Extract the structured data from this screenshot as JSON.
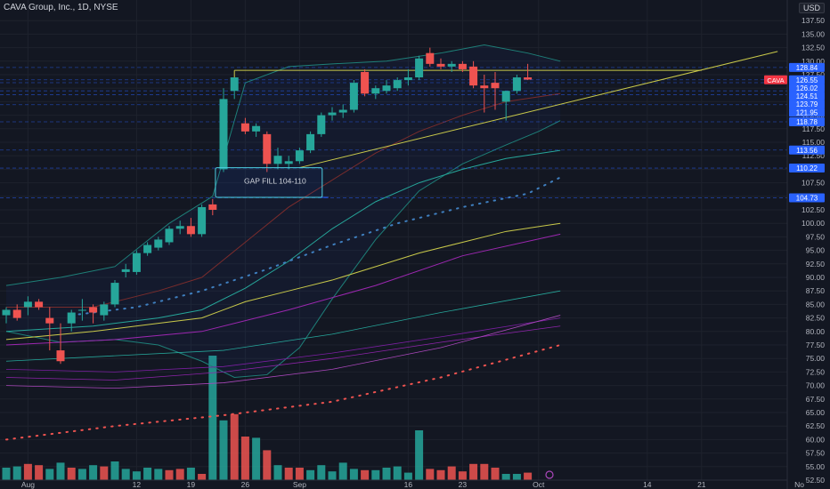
{
  "header": {
    "symbol_line": "CAVA Group, Inc., 1D, NYSE",
    "currency": "USD"
  },
  "chart_data": {
    "type": "candlestick",
    "title": "CAVA Group, Inc., 1D, NYSE",
    "ylim": [
      52.5,
      140
    ],
    "y_ticks": [
      "137.50",
      "135.00",
      "132.50",
      "130.00",
      "127.50",
      "125.00",
      "122.50",
      "120.00",
      "117.50",
      "115.00",
      "112.50",
      "110.00",
      "107.50",
      "105.00",
      "102.50",
      "100.00",
      "97.50",
      "95.00",
      "92.50",
      "90.00",
      "87.50",
      "85.00",
      "82.50",
      "80.00",
      "77.50",
      "75.00",
      "72.50",
      "70.00",
      "67.50",
      "65.00",
      "62.50",
      "60.00",
      "57.50",
      "55.00",
      "52.50"
    ],
    "x_ticks": [
      {
        "label": "Aug",
        "i": 2
      },
      {
        "label": "12",
        "i": 12
      },
      {
        "label": "19",
        "i": 17
      },
      {
        "label": "26",
        "i": 22
      },
      {
        "label": "Sep",
        "i": 27
      },
      {
        "label": "16",
        "i": 37
      },
      {
        "label": "23",
        "i": 42
      },
      {
        "label": "Oct",
        "i": 49
      },
      {
        "label": "14",
        "i": 59
      },
      {
        "label": "21",
        "i": 64
      },
      {
        "label": "No",
        "i": 73
      }
    ],
    "candles": [
      {
        "o": 83.0,
        "h": 84.5,
        "l": 81.5,
        "c": 84.0
      },
      {
        "o": 84.0,
        "h": 85.0,
        "l": 82.0,
        "c": 82.5
      },
      {
        "o": 84.5,
        "h": 86.5,
        "l": 83.0,
        "c": 85.5
      },
      {
        "o": 85.5,
        "h": 86.0,
        "l": 84.0,
        "c": 84.5
      },
      {
        "o": 82.5,
        "h": 84.5,
        "l": 76.5,
        "c": 81.5
      },
      {
        "o": 76.5,
        "h": 81.5,
        "l": 74.0,
        "c": 74.5
      },
      {
        "o": 81.5,
        "h": 84.0,
        "l": 80.0,
        "c": 83.5
      },
      {
        "o": 84.0,
        "h": 86.0,
        "l": 82.0,
        "c": 84.0
      },
      {
        "o": 84.5,
        "h": 85.0,
        "l": 81.5,
        "c": 83.5
      },
      {
        "o": 83.0,
        "h": 85.5,
        "l": 82.0,
        "c": 85.0
      },
      {
        "o": 85.0,
        "h": 89.5,
        "l": 84.5,
        "c": 89.0
      },
      {
        "o": 91.0,
        "h": 92.5,
        "l": 90.0,
        "c": 91.5
      },
      {
        "o": 91.0,
        "h": 95.0,
        "l": 90.5,
        "c": 94.5
      },
      {
        "o": 94.5,
        "h": 96.5,
        "l": 94.0,
        "c": 96.0
      },
      {
        "o": 95.5,
        "h": 97.5,
        "l": 95.0,
        "c": 97.0
      },
      {
        "o": 96.5,
        "h": 99.5,
        "l": 96.0,
        "c": 99.0
      },
      {
        "o": 99.0,
        "h": 100.5,
        "l": 98.0,
        "c": 99.5
      },
      {
        "o": 99.5,
        "h": 101.0,
        "l": 97.5,
        "c": 98.0
      },
      {
        "o": 98.0,
        "h": 103.5,
        "l": 97.5,
        "c": 103.0
      },
      {
        "o": 103.5,
        "h": 104.5,
        "l": 101.5,
        "c": 102.5
      },
      {
        "o": 110.0,
        "h": 125.0,
        "l": 109.5,
        "c": 123.0
      },
      {
        "o": 124.5,
        "h": 127.0,
        "l": 123.0,
        "c": 127.0
      },
      {
        "o": 118.5,
        "h": 119.5,
        "l": 116.5,
        "c": 117.0
      },
      {
        "o": 117.0,
        "h": 118.5,
        "l": 116.0,
        "c": 118.0
      },
      {
        "o": 116.5,
        "h": 117.0,
        "l": 109.5,
        "c": 111.0
      },
      {
        "o": 111.0,
        "h": 114.0,
        "l": 110.0,
        "c": 112.5
      },
      {
        "o": 111.0,
        "h": 112.5,
        "l": 110.0,
        "c": 111.5
      },
      {
        "o": 111.5,
        "h": 114.0,
        "l": 111.0,
        "c": 113.5
      },
      {
        "o": 113.5,
        "h": 117.0,
        "l": 113.0,
        "c": 116.5
      },
      {
        "o": 116.5,
        "h": 120.5,
        "l": 116.0,
        "c": 120.0
      },
      {
        "o": 120.0,
        "h": 121.5,
        "l": 119.0,
        "c": 120.5
      },
      {
        "o": 120.5,
        "h": 122.0,
        "l": 119.5,
        "c": 121.0
      },
      {
        "o": 121.0,
        "h": 126.5,
        "l": 120.5,
        "c": 126.0
      },
      {
        "o": 128.0,
        "h": 128.5,
        "l": 123.5,
        "c": 124.0
      },
      {
        "o": 124.0,
        "h": 125.5,
        "l": 123.0,
        "c": 125.0
      },
      {
        "o": 124.5,
        "h": 126.5,
        "l": 124.0,
        "c": 125.5
      },
      {
        "o": 125.0,
        "h": 127.0,
        "l": 124.5,
        "c": 126.5
      },
      {
        "o": 126.5,
        "h": 128.5,
        "l": 125.5,
        "c": 127.0
      },
      {
        "o": 127.0,
        "h": 131.0,
        "l": 126.5,
        "c": 130.5
      },
      {
        "o": 131.5,
        "h": 132.5,
        "l": 129.0,
        "c": 129.5
      },
      {
        "o": 129.5,
        "h": 130.5,
        "l": 128.5,
        "c": 129.0
      },
      {
        "o": 129.0,
        "h": 130.0,
        "l": 128.0,
        "c": 129.5
      },
      {
        "o": 129.5,
        "h": 130.0,
        "l": 128.0,
        "c": 128.5
      },
      {
        "o": 129.0,
        "h": 130.0,
        "l": 125.0,
        "c": 125.5
      },
      {
        "o": 125.5,
        "h": 127.5,
        "l": 120.5,
        "c": 125.0
      },
      {
        "o": 126.0,
        "h": 128.0,
        "l": 121.0,
        "c": 125.0
      },
      {
        "o": 122.5,
        "h": 124.5,
        "l": 119.0,
        "c": 124.5
      },
      {
        "o": 124.5,
        "h": 127.5,
        "l": 124.0,
        "c": 127.0
      },
      {
        "o": 127.0,
        "h": 129.5,
        "l": 126.5,
        "c": 126.6
      }
    ],
    "volume_relative": [
      0.1,
      0.11,
      0.13,
      0.12,
      0.09,
      0.14,
      0.1,
      0.09,
      0.12,
      0.11,
      0.15,
      0.09,
      0.07,
      0.1,
      0.09,
      0.08,
      0.09,
      0.1,
      0.05,
      1.0,
      0.48,
      0.53,
      0.35,
      0.34,
      0.24,
      0.12,
      0.1,
      0.1,
      0.08,
      0.12,
      0.07,
      0.14,
      0.09,
      0.08,
      0.08,
      0.1,
      0.11,
      0.06,
      0.4,
      0.09,
      0.08,
      0.11,
      0.07,
      0.13,
      0.13,
      0.1,
      0.05,
      0.05,
      0.06
    ],
    "volume_dir": [
      "up",
      "up",
      "down",
      "down",
      "up",
      "up",
      "down",
      "up",
      "up",
      "down",
      "up",
      "up",
      "up",
      "up",
      "up",
      "down",
      "down",
      "up",
      "down",
      "up",
      "up",
      "down",
      "down",
      "up",
      "down",
      "up",
      "down",
      "down",
      "up",
      "up",
      "up",
      "up",
      "up",
      "down",
      "up",
      "up",
      "up",
      "up",
      "up",
      "down",
      "down",
      "down",
      "down",
      "down",
      "down",
      "down",
      "up",
      "up",
      "down"
    ],
    "overlays": {
      "bb_upper": [
        [
          0,
          88.5
        ],
        [
          5,
          90.0
        ],
        [
          10,
          92.0
        ],
        [
          15,
          100.0
        ],
        [
          19,
          105.0
        ],
        [
          22,
          126.0
        ],
        [
          26,
          129.0
        ],
        [
          30,
          129.5
        ],
        [
          35,
          130.0
        ],
        [
          40,
          131.5
        ],
        [
          44,
          133.0
        ],
        [
          48,
          131.5
        ],
        [
          51,
          130.0
        ]
      ],
      "bb_lower": [
        [
          0,
          80.0
        ],
        [
          5,
          78.0
        ],
        [
          10,
          78.5
        ],
        [
          14,
          77.5
        ],
        [
          18,
          74.5
        ],
        [
          21,
          71.5
        ],
        [
          24,
          72.0
        ],
        [
          27,
          77.0
        ],
        [
          30,
          86.0
        ],
        [
          34,
          97.0
        ],
        [
          38,
          106.0
        ],
        [
          42,
          111.0
        ],
        [
          46,
          114.5
        ],
        [
          49,
          117.0
        ],
        [
          51,
          119.0
        ]
      ],
      "bb_basis": [
        [
          0,
          84.5
        ],
        [
          8,
          84.5
        ],
        [
          14,
          87.5
        ],
        [
          18,
          90.0
        ],
        [
          22,
          96.5
        ],
        [
          26,
          103.0
        ],
        [
          30,
          108.0
        ],
        [
          34,
          113.0
        ],
        [
          38,
          117.0
        ],
        [
          42,
          120.0
        ],
        [
          46,
          122.5
        ],
        [
          51,
          124.0
        ]
      ],
      "ema_teal": [
        [
          0,
          80.0
        ],
        [
          8,
          81.0
        ],
        [
          14,
          82.5
        ],
        [
          18,
          84.0
        ],
        [
          22,
          88.0
        ],
        [
          26,
          93.0
        ],
        [
          30,
          99.0
        ],
        [
          34,
          104.0
        ],
        [
          38,
          107.5
        ],
        [
          42,
          110.0
        ],
        [
          46,
          112.0
        ],
        [
          51,
          113.5
        ]
      ],
      "sma_yellow": [
        [
          0,
          78.5
        ],
        [
          8,
          80.0
        ],
        [
          14,
          81.5
        ],
        [
          18,
          82.5
        ],
        [
          22,
          85.5
        ],
        [
          26,
          87.5
        ],
        [
          30,
          89.5
        ],
        [
          34,
          92.0
        ],
        [
          38,
          94.5
        ],
        [
          42,
          96.5
        ],
        [
          46,
          98.5
        ],
        [
          51,
          100.0
        ]
      ],
      "sma_purple": [
        [
          0,
          77.5
        ],
        [
          10,
          78.5
        ],
        [
          18,
          80.0
        ],
        [
          26,
          84.0
        ],
        [
          34,
          88.5
        ],
        [
          42,
          94.0
        ],
        [
          51,
          98.0
        ]
      ],
      "sma_teal2": [
        [
          0,
          74.5
        ],
        [
          10,
          75.5
        ],
        [
          20,
          76.5
        ],
        [
          30,
          79.5
        ],
        [
          40,
          83.5
        ],
        [
          51,
          87.5
        ]
      ],
      "sma_purple2": [
        [
          0,
          73.0
        ],
        [
          10,
          72.5
        ],
        [
          20,
          73.5
        ],
        [
          30,
          76.0
        ],
        [
          40,
          79.0
        ],
        [
          51,
          82.5
        ]
      ],
      "sma_purple3": [
        [
          0,
          71.5
        ],
        [
          10,
          71.0
        ],
        [
          20,
          72.5
        ],
        [
          30,
          75.0
        ],
        [
          40,
          78.0
        ],
        [
          51,
          81.0
        ]
      ],
      "sma_purple4": [
        [
          0,
          70.0
        ],
        [
          10,
          69.5
        ],
        [
          20,
          70.5
        ],
        [
          30,
          73.0
        ],
        [
          40,
          77.0
        ],
        [
          51,
          83.0
        ]
      ],
      "dotted_blue": [
        [
          6,
          83.0
        ],
        [
          12,
          84.5
        ],
        [
          18,
          87.5
        ],
        [
          24,
          91.5
        ],
        [
          30,
          96.0
        ],
        [
          36,
          100.0
        ],
        [
          42,
          103.0
        ],
        [
          48,
          105.5
        ],
        [
          51,
          108.5
        ]
      ],
      "dotted_red": [
        [
          0,
          60.0
        ],
        [
          10,
          62.5
        ],
        [
          20,
          64.5
        ],
        [
          30,
          67.0
        ],
        [
          40,
          71.5
        ],
        [
          51,
          77.5
        ]
      ]
    },
    "trendlines": [
      {
        "from": [
          21,
          128.3
        ],
        "to": [
          64,
          128.3
        ]
      },
      {
        "from": [
          27,
          110.3
        ],
        "to": [
          71,
          131.8
        ]
      }
    ],
    "h_levels": [
      128.84,
      126.55,
      126.02,
      124.51,
      123.79,
      121.95,
      118.78,
      113.56,
      110.22,
      104.73
    ],
    "price_badges": [
      {
        "value": "126.55",
        "color": "#2962ff"
      },
      {
        "value": "126.02",
        "color": "#2962ff"
      },
      {
        "value": "124.51",
        "color": "#2962ff"
      },
      {
        "value": "123.79",
        "color": "#2962ff"
      },
      {
        "value": "121.95",
        "color": "#2962ff"
      },
      {
        "value": "118.78",
        "color": "#2962ff"
      },
      {
        "value": "113.56",
        "color": "#2962ff"
      },
      {
        "value": "110.22",
        "color": "#2962ff"
      },
      {
        "value": "104.73",
        "color": "#2962ff"
      }
    ],
    "top_badge": {
      "value": "128.84",
      "color": "#2962ff"
    },
    "last_price_badge": {
      "ticker": "CAVA",
      "value": "126.55",
      "color": "#f23645"
    },
    "annotation": {
      "text": "GAP FILL 104-110",
      "from_i": 19.5,
      "to_i": 29,
      "y_top": 110.3,
      "y_bottom": 104.8
    },
    "colors": {
      "up": "#26a69a",
      "down": "#ef5350",
      "bg": "#131722",
      "grid": "#1e222d"
    }
  }
}
